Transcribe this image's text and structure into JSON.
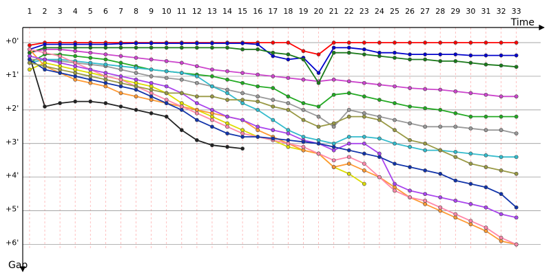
{
  "chart_data": {
    "type": "line",
    "x_label": "Time",
    "y_label": "Gap",
    "y_reversed": true,
    "grid": true,
    "x": [
      1,
      2,
      3,
      4,
      5,
      6,
      7,
      8,
      9,
      10,
      11,
      12,
      13,
      14,
      15,
      16,
      17,
      18,
      19,
      20,
      21,
      22,
      23,
      24,
      25,
      26,
      27,
      28,
      29,
      30,
      31,
      32,
      33
    ],
    "xlim": [
      0.55,
      34.6
    ],
    "xticks": [
      1,
      2,
      3,
      4,
      5,
      6,
      7,
      8,
      9,
      10,
      11,
      12,
      13,
      14,
      15,
      16,
      17,
      18,
      19,
      20,
      21,
      22,
      23,
      24,
      25,
      26,
      27,
      28,
      29,
      30,
      31,
      32,
      33
    ],
    "ylim": [
      -0.45,
      6.5
    ],
    "yticks": [
      {
        "value": 0,
        "label": "+0'"
      },
      {
        "value": 1,
        "label": "+1'"
      },
      {
        "value": 2,
        "label": "+2'"
      },
      {
        "value": 3,
        "label": "+3'"
      },
      {
        "value": 4,
        "label": "+4'"
      },
      {
        "value": 5,
        "label": "+5'"
      },
      {
        "value": 6,
        "label": "+6'"
      }
    ],
    "series": [
      {
        "color": "#ff0000",
        "values": [
          0.08,
          0,
          0,
          0,
          0,
          0,
          0,
          0,
          0,
          0,
          0,
          0,
          0,
          0,
          0,
          0,
          0,
          0,
          0.25,
          0.35,
          0,
          0,
          0,
          0,
          0,
          0,
          0,
          0,
          0,
          0,
          0,
          0,
          0
        ]
      },
      {
        "color": "#0000cc",
        "values": [
          0.2,
          0.05,
          0.05,
          0.05,
          0.05,
          0.05,
          0.03,
          0.02,
          0.02,
          0.02,
          0.02,
          0.02,
          0.02,
          0.02,
          0.02,
          0.05,
          0.4,
          0.5,
          0.45,
          0.9,
          0.15,
          0.15,
          0.2,
          0.3,
          0.3,
          0.35,
          0.35,
          0.35,
          0.35,
          0.38,
          0.38,
          0.38,
          0.38
        ]
      },
      {
        "color": "#cc44cc",
        "values": [
          0.3,
          0.2,
          0.2,
          0.25,
          0.3,
          0.35,
          0.4,
          0.45,
          0.5,
          0.55,
          0.6,
          0.7,
          0.8,
          0.85,
          0.9,
          0.95,
          1.0,
          1.05,
          1.1,
          1.15,
          1.1,
          1.15,
          1.2,
          1.25,
          1.3,
          1.35,
          1.38,
          1.4,
          1.45,
          1.5,
          1.55,
          1.6,
          1.6
        ]
      },
      {
        "color": "#22aa22",
        "values": [
          0.6,
          0.35,
          0.35,
          0.4,
          0.45,
          0.5,
          0.6,
          0.7,
          0.8,
          0.85,
          0.9,
          0.95,
          1.0,
          1.1,
          1.2,
          1.3,
          1.35,
          1.6,
          1.8,
          1.9,
          1.55,
          1.5,
          1.6,
          1.7,
          1.8,
          1.9,
          1.95,
          2.0,
          2.1,
          2.2,
          2.2,
          2.2,
          2.2
        ]
      },
      {
        "color": "#1a7a1a",
        "values": [
          0.3,
          0.15,
          0.15,
          0.15,
          0.15,
          0.15,
          0.15,
          0.15,
          0.15,
          0.15,
          0.15,
          0.15,
          0.15,
          0.15,
          0.2,
          0.2,
          0.3,
          0.35,
          0.5,
          1.2,
          0.3,
          0.3,
          0.35,
          0.4,
          0.45,
          0.5,
          0.5,
          0.55,
          0.55,
          0.6,
          0.65,
          0.68,
          0.72
        ]
      },
      {
        "color": "#999999",
        "values": [
          0.5,
          0.5,
          0.55,
          0.6,
          0.65,
          0.7,
          0.8,
          0.9,
          1.0,
          1.05,
          1.1,
          1.2,
          1.3,
          1.4,
          1.5,
          1.6,
          1.7,
          1.8,
          2.0,
          2.2,
          2.5,
          2.0,
          2.1,
          2.2,
          2.3,
          2.4,
          2.5,
          2.5,
          2.5,
          2.55,
          2.6,
          2.6,
          2.7
        ]
      },
      {
        "color": "#33bbcc",
        "values": [
          0.6,
          0.5,
          0.5,
          0.55,
          0.6,
          0.65,
          0.7,
          0.75,
          0.8,
          0.85,
          0.9,
          1.0,
          1.3,
          1.5,
          1.8,
          2.0,
          2.3,
          2.6,
          2.8,
          2.9,
          3.0,
          2.8,
          2.8,
          2.85,
          3.0,
          3.1,
          3.2,
          3.2,
          3.25,
          3.3,
          3.35,
          3.4,
          3.4
        ]
      },
      {
        "color": "#dddd00",
        "values": [
          0.8,
          0.6,
          0.7,
          0.8,
          0.9,
          1.0,
          1.1,
          1.2,
          1.3,
          1.5,
          1.8,
          2.0,
          2.2,
          2.4,
          2.6,
          2.8,
          2.9,
          3.1,
          3.2,
          3.3,
          3.7,
          3.9,
          4.2,
          null,
          null,
          null,
          null,
          null,
          null,
          null,
          null,
          null,
          null
        ]
      },
      {
        "color": "#222222",
        "values": [
          0.4,
          1.9,
          1.8,
          1.75,
          1.75,
          1.8,
          1.9,
          2.0,
          2.1,
          2.2,
          2.6,
          2.9,
          3.05,
          3.1,
          3.15,
          null,
          null,
          null,
          null,
          null,
          null,
          null,
          null,
          null,
          null,
          null,
          null,
          null,
          null,
          null,
          null,
          null,
          null
        ]
      },
      {
        "color": "#ff9933",
        "values": [
          0.2,
          0.7,
          0.9,
          1.1,
          1.2,
          1.3,
          1.5,
          1.6,
          1.7,
          1.8,
          1.9,
          2.0,
          2.1,
          2.2,
          2.3,
          2.6,
          2.8,
          3.0,
          3.2,
          3.3,
          3.7,
          3.6,
          3.8,
          4.0,
          4.3,
          4.6,
          4.8,
          5.0,
          5.2,
          5.4,
          5.6,
          5.9,
          6.0
        ]
      },
      {
        "color": "#ff88aa",
        "values": [
          0.2,
          0.3,
          0.4,
          0.6,
          0.8,
          1.0,
          1.1,
          1.3,
          1.5,
          1.7,
          1.9,
          2.1,
          2.3,
          2.5,
          2.7,
          2.8,
          2.9,
          3.0,
          3.1,
          3.3,
          3.5,
          3.4,
          3.6,
          4.0,
          4.4,
          4.6,
          4.7,
          4.9,
          5.1,
          5.3,
          5.5,
          5.8,
          6.0
        ]
      },
      {
        "color": "#aa44ee",
        "values": [
          0.4,
          0.5,
          0.6,
          0.7,
          0.8,
          0.9,
          1.0,
          1.1,
          1.2,
          1.3,
          1.5,
          1.8,
          2.0,
          2.2,
          2.3,
          2.5,
          2.6,
          2.7,
          2.9,
          3.0,
          3.2,
          3.0,
          3.0,
          3.3,
          4.2,
          4.4,
          4.5,
          4.6,
          4.7,
          4.8,
          4.9,
          5.1,
          5.2
        ]
      },
      {
        "color": "#1133aa",
        "values": [
          0.5,
          0.8,
          0.9,
          1.0,
          1.1,
          1.2,
          1.3,
          1.4,
          1.6,
          1.8,
          2.0,
          2.3,
          2.5,
          2.7,
          2.8,
          2.8,
          2.85,
          2.9,
          2.95,
          3.0,
          3.1,
          3.2,
          3.3,
          3.4,
          3.6,
          3.7,
          3.8,
          3.9,
          4.1,
          4.2,
          4.3,
          4.5,
          4.9
        ]
      },
      {
        "color": "#999944",
        "values": [
          0.6,
          0.7,
          0.8,
          0.9,
          1.0,
          1.1,
          1.2,
          1.3,
          1.4,
          1.5,
          1.5,
          1.6,
          1.6,
          1.7,
          1.7,
          1.75,
          1.9,
          2.0,
          2.3,
          2.5,
          2.4,
          2.2,
          2.2,
          2.3,
          2.6,
          2.9,
          3.0,
          3.2,
          3.4,
          3.6,
          3.7,
          3.8,
          3.9
        ]
      }
    ]
  }
}
